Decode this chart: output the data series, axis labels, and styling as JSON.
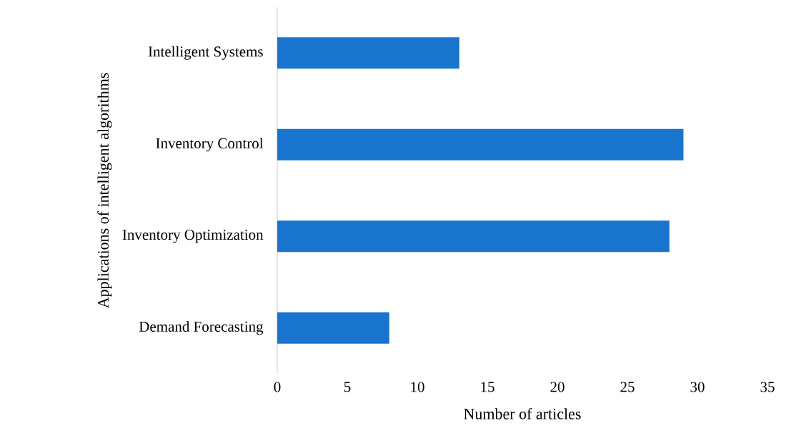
{
  "chart_data": {
    "type": "bar",
    "orientation": "horizontal",
    "categories": [
      "Intelligent Systems",
      "Inventory Control",
      "Inventory Optimization",
      "Demand Forecasting"
    ],
    "values": [
      13,
      29,
      28,
      8
    ],
    "color": "#1874cd",
    "xlim": [
      0,
      35
    ],
    "xticks": [
      0,
      5,
      10,
      15,
      20,
      25,
      30,
      35
    ],
    "xlabel": "Number of articles",
    "ylabel": "Applications of intelligent algorithms",
    "grid": false
  }
}
